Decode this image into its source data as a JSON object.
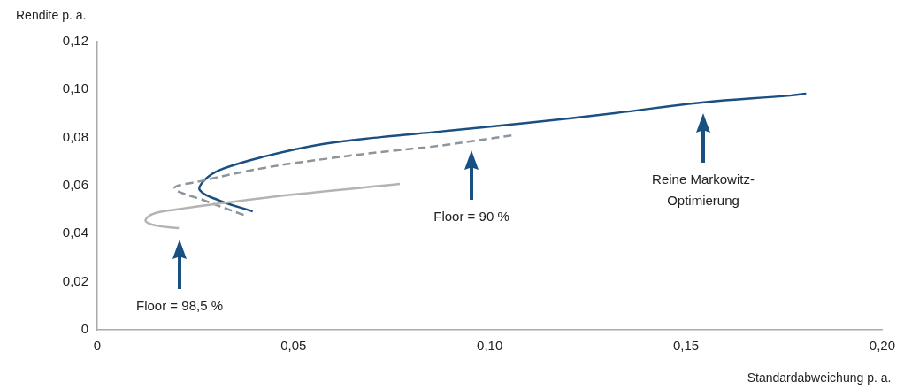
{
  "chart_data": {
    "type": "line",
    "xlabel": "Standardabweichung p. a.",
    "ylabel": "Rendite p. a.",
    "xlim": [
      0,
      0.2
    ],
    "ylim": [
      0,
      0.12
    ],
    "xticks": [
      0,
      {
        "value": 0.05,
        "label": "0,05"
      },
      {
        "value": 0.1,
        "label": "0,10"
      },
      {
        "value": 0.15,
        "label": "0,15"
      },
      {
        "value": 0.2,
        "label": "0,20"
      }
    ],
    "yticks": [
      0,
      {
        "value": 0.02,
        "label": "0,02"
      },
      {
        "value": 0.04,
        "label": "0,04"
      },
      {
        "value": 0.06,
        "label": "0,06"
      },
      {
        "value": 0.08,
        "label": "0,08"
      },
      {
        "value": 0.1,
        "label": "0,10"
      },
      {
        "value": 0.12,
        "label": "0,12"
      }
    ],
    "grid": false,
    "legend": false,
    "marker": "none",
    "series": [
      {
        "color": "#b3b3b3",
        "line_style": "solid",
        "x": [
          0.0208,
          0.015,
          0.0123,
          0.0141,
          0.0201,
          0.0313,
          0.0499,
          0.0771
        ],
        "values": [
          0.0423,
          0.0434,
          0.0453,
          0.0482,
          0.0501,
          0.0526,
          0.0563,
          0.0607
        ]
      },
      {
        "color": "#8c949c",
        "line_style": "dashed",
        "x": [
          0.0373,
          0.0275,
          0.0197,
          0.0261,
          0.0425,
          0.0574,
          0.0722,
          0.0872,
          0.0945,
          0.106
        ],
        "values": [
          0.0478,
          0.0537,
          0.0589,
          0.0618,
          0.0674,
          0.071,
          0.074,
          0.0766,
          0.0783,
          0.081
        ]
      },
      {
        "color": "#1a4f82",
        "line_style": "solid",
        "x": [
          0.0396,
          0.0313,
          0.0261,
          0.0275,
          0.0313,
          0.0425,
          0.0574,
          0.0722,
          0.0872,
          0.1095,
          0.1318,
          0.154,
          0.1765,
          0.1806
        ],
        "values": [
          0.0493,
          0.0537,
          0.0582,
          0.0626,
          0.0666,
          0.0721,
          0.0773,
          0.0802,
          0.0825,
          0.0861,
          0.0902,
          0.0946,
          0.0975,
          0.0983
        ]
      }
    ],
    "annotations": [
      "Floor = 98,5 %",
      "Floor = 90 %",
      "Reine Markowitz-\nOptimierung"
    ]
  }
}
